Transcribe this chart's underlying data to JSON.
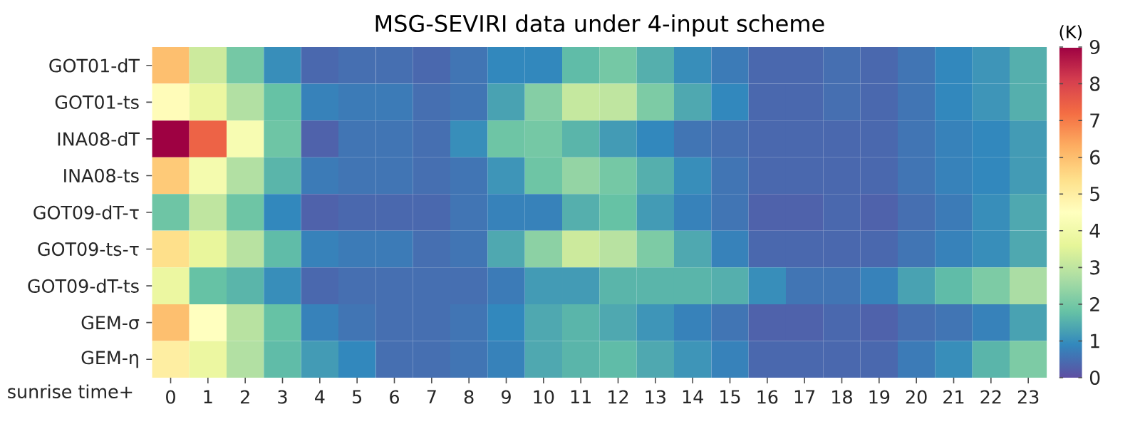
{
  "chart_data": {
    "type": "heatmap",
    "title": "MSG-SEVIRI data under 4-input scheme",
    "xlabel": "sunrise time+",
    "clabel": "(K)",
    "categories": [
      "0",
      "1",
      "2",
      "3",
      "4",
      "5",
      "6",
      "7",
      "8",
      "9",
      "10",
      "11",
      "12",
      "13",
      "14",
      "15",
      "16",
      "17",
      "18",
      "19",
      "20",
      "21",
      "22",
      "23"
    ],
    "y_categories": [
      "GOT01-dT",
      "GOT01-ts",
      "INA08-dT",
      "INA08-ts",
      "GOT09-dT-τ",
      "GOT09-ts-τ",
      "GOT09-dT-ts",
      "GEM-σ",
      "GEM-η"
    ],
    "cells": [
      [
        6.0,
        3.2,
        2.0,
        1.0,
        0.4,
        0.5,
        0.5,
        0.4,
        0.6,
        0.9,
        0.9,
        1.7,
        2.0,
        1.5,
        1.0,
        0.7,
        0.4,
        0.4,
        0.5,
        0.4,
        0.6,
        0.9,
        1.1,
        1.5
      ],
      [
        4.6,
        3.8,
        2.8,
        1.8,
        0.8,
        0.7,
        0.7,
        0.5,
        0.6,
        1.3,
        2.2,
        3.1,
        3.0,
        2.1,
        1.4,
        0.9,
        0.4,
        0.4,
        0.5,
        0.4,
        0.6,
        0.9,
        1.1,
        1.5
      ],
      [
        9.0,
        7.4,
        4.2,
        1.9,
        0.3,
        0.6,
        0.6,
        0.5,
        1.0,
        1.9,
        2.0,
        1.6,
        1.2,
        0.9,
        0.6,
        0.5,
        0.4,
        0.4,
        0.4,
        0.4,
        0.6,
        0.8,
        0.9,
        1.2
      ],
      [
        5.8,
        4.1,
        2.8,
        1.6,
        0.7,
        0.6,
        0.6,
        0.5,
        0.6,
        1.1,
        1.9,
        2.4,
        2.0,
        1.5,
        1.0,
        0.6,
        0.4,
        0.4,
        0.4,
        0.4,
        0.6,
        0.8,
        0.9,
        1.2
      ],
      [
        1.9,
        3.0,
        1.9,
        0.9,
        0.3,
        0.4,
        0.4,
        0.4,
        0.6,
        0.8,
        0.8,
        1.5,
        1.8,
        1.2,
        0.8,
        0.6,
        0.3,
        0.3,
        0.4,
        0.3,
        0.5,
        0.7,
        1.0,
        1.4
      ],
      [
        5.4,
        3.7,
        2.9,
        1.7,
        0.8,
        0.7,
        0.7,
        0.5,
        0.6,
        1.4,
        2.3,
        3.2,
        2.9,
        2.1,
        1.4,
        0.8,
        0.4,
        0.4,
        0.4,
        0.4,
        0.6,
        0.8,
        1.0,
        1.4
      ],
      [
        3.8,
        1.8,
        1.6,
        1.0,
        0.4,
        0.5,
        0.5,
        0.5,
        0.5,
        0.7,
        1.2,
        1.2,
        1.6,
        1.6,
        1.6,
        1.5,
        1.0,
        0.6,
        0.6,
        0.8,
        1.3,
        1.7,
        2.1,
        2.7
      ],
      [
        6.0,
        4.5,
        2.9,
        1.8,
        0.8,
        0.6,
        0.5,
        0.5,
        0.6,
        0.9,
        1.4,
        1.6,
        1.4,
        1.1,
        0.8,
        0.6,
        0.3,
        0.3,
        0.4,
        0.3,
        0.5,
        0.6,
        0.8,
        1.3
      ],
      [
        5.0,
        3.8,
        2.8,
        1.7,
        1.2,
        0.9,
        0.5,
        0.5,
        0.6,
        0.8,
        1.4,
        1.6,
        1.7,
        1.4,
        1.1,
        0.8,
        0.4,
        0.4,
        0.4,
        0.4,
        0.7,
        1.0,
        1.6,
        2.1
      ]
    ],
    "clim": [
      0,
      9
    ],
    "cticks": [
      0,
      1,
      2,
      3,
      4,
      5,
      6,
      7,
      8,
      9
    ]
  }
}
